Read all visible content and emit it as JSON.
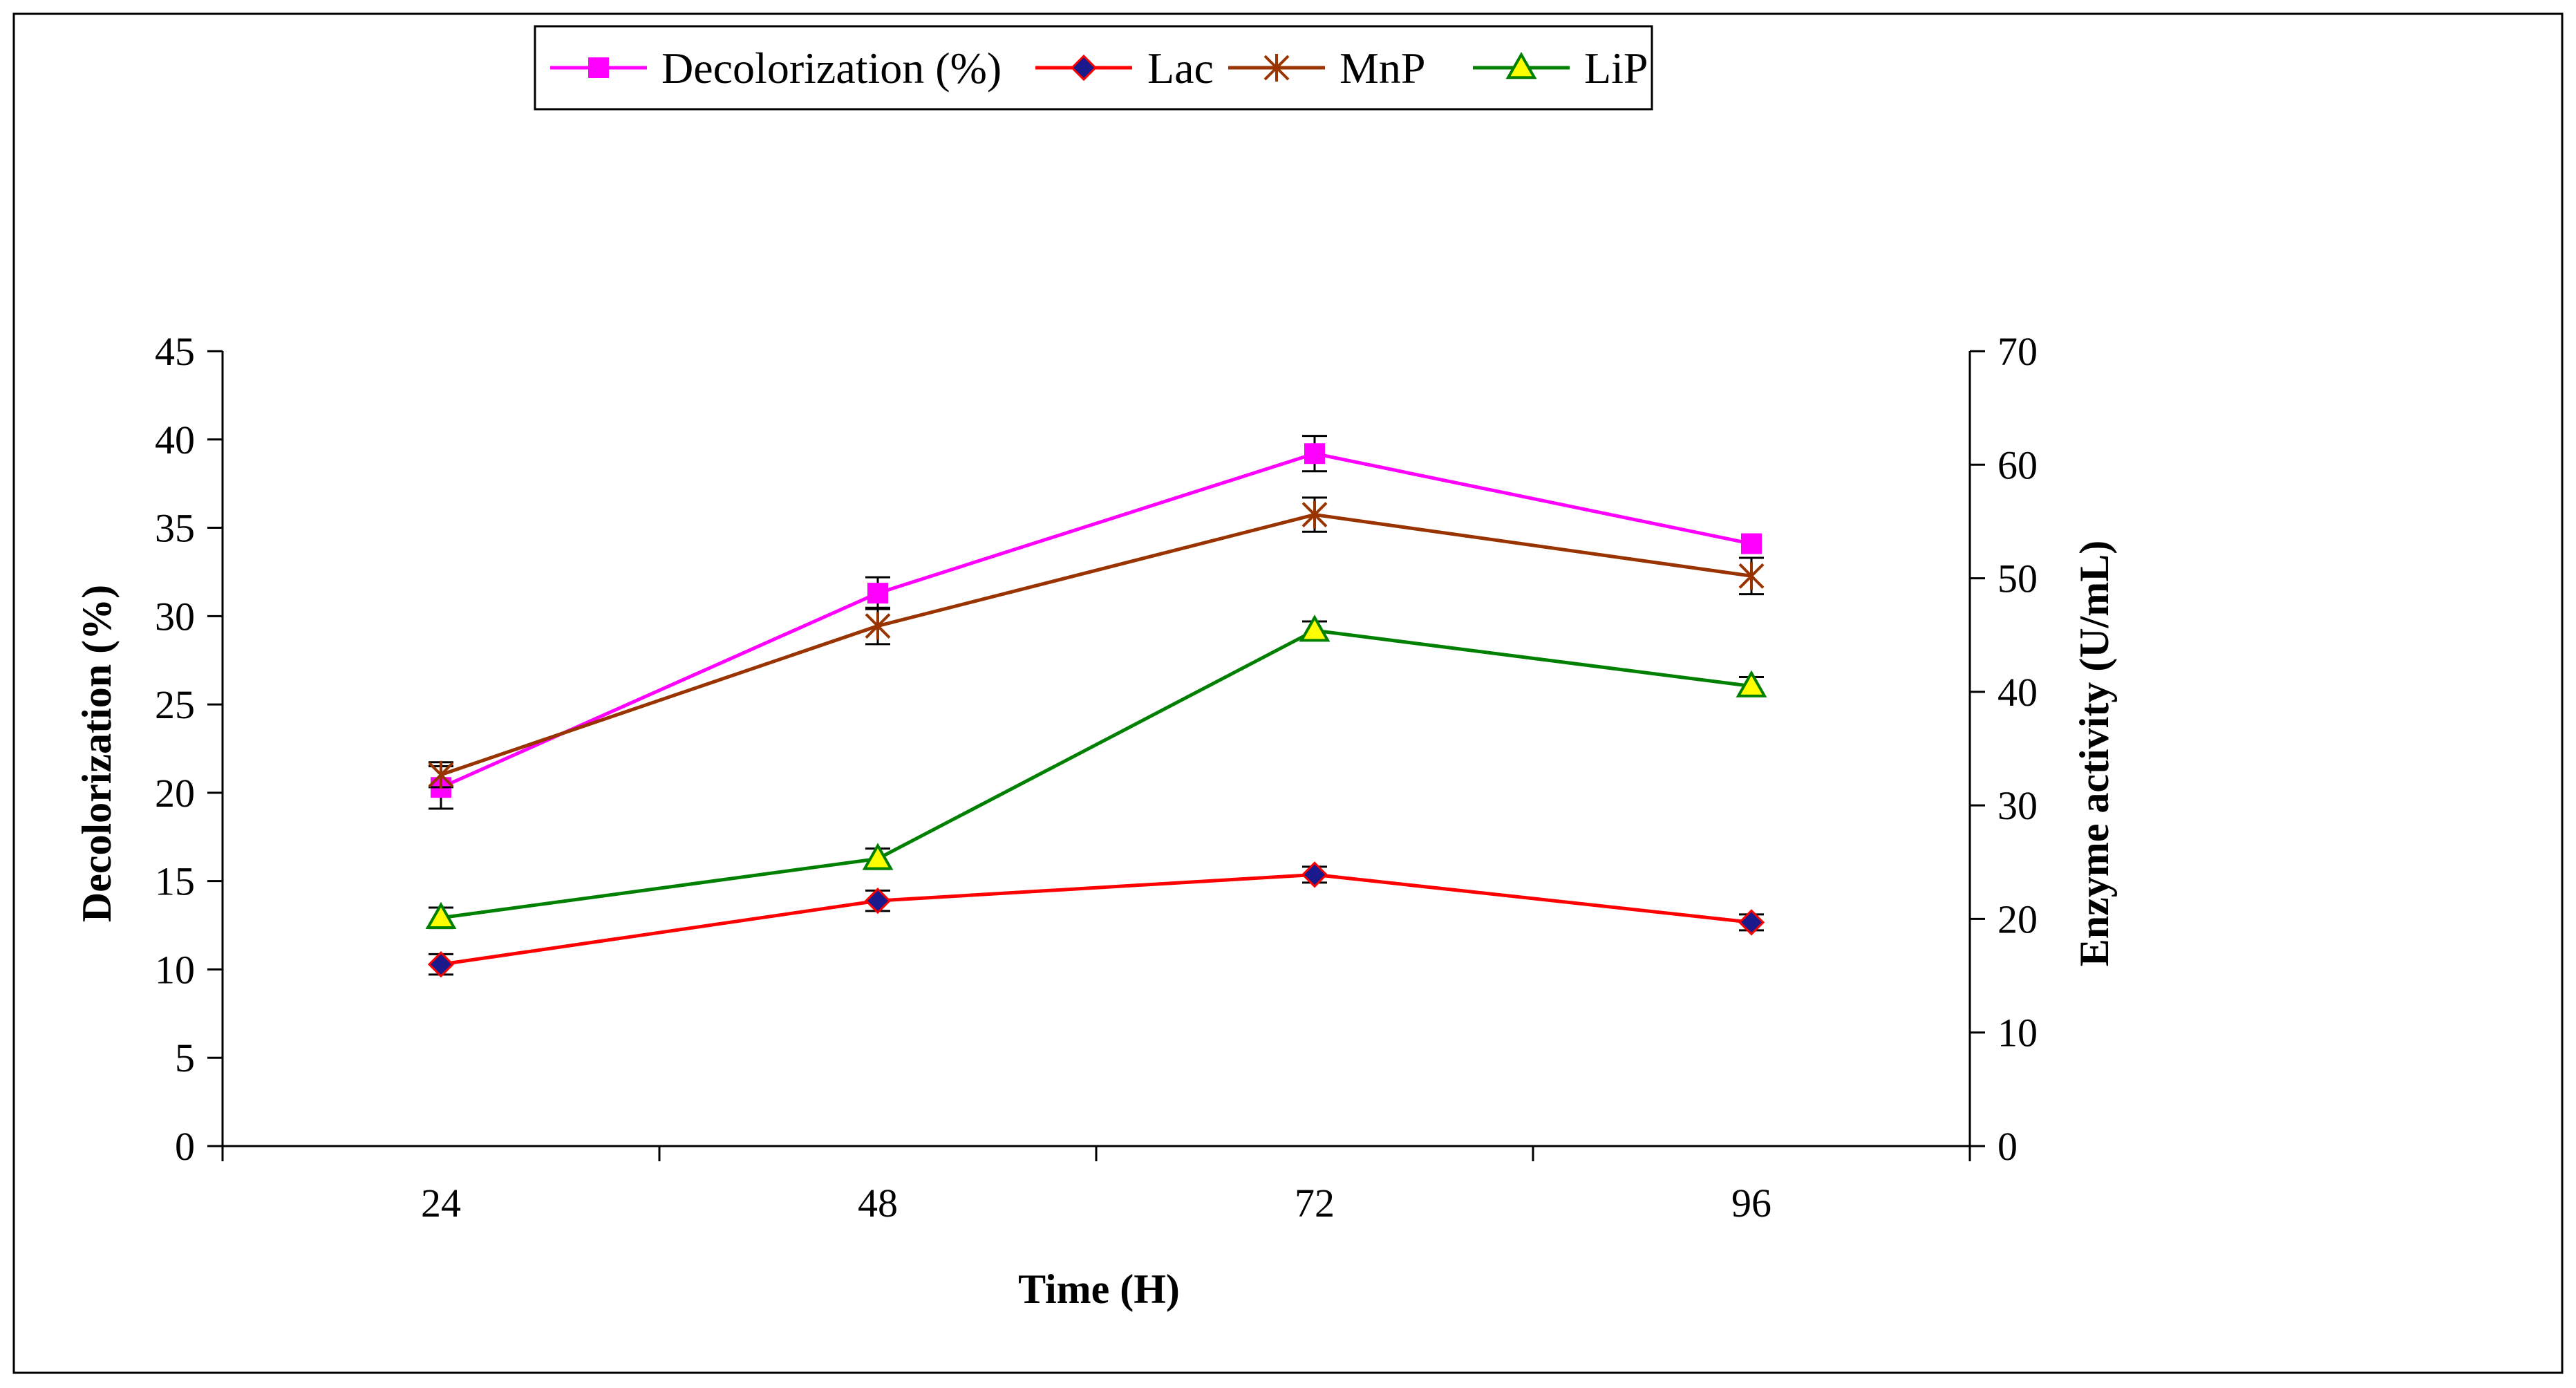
{
  "chart_data": {
    "type": "line",
    "title": "",
    "categories": [
      "24",
      "48",
      "72",
      "96"
    ],
    "x": [
      24,
      48,
      72,
      96
    ],
    "xlabel": "Time (H)",
    "ylabel": "Decolorization (%)",
    "y2label": "Enzyme activity (U/mL)",
    "ylim": [
      0,
      45
    ],
    "y2lim": [
      0,
      70
    ],
    "yticks": [
      "0",
      "5",
      "10",
      "15",
      "20",
      "25",
      "30",
      "35",
      "40",
      "45"
    ],
    "y2ticks": [
      "0",
      "10",
      "20",
      "30",
      "40",
      "50",
      "60",
      "70"
    ],
    "legend_position": "top-center",
    "grid": false,
    "series": [
      {
        "name": "Decolorization (%)",
        "axis": "left",
        "values": [
          20.3,
          31.3,
          39.2,
          34.1
        ],
        "errors": [
          1.2,
          0.9,
          1.0,
          0.0
        ],
        "color": "#ff00ff",
        "marker": "square"
      },
      {
        "name": "Lac",
        "axis": "right",
        "values": [
          16.0,
          21.6,
          23.9,
          19.7
        ],
        "errors": [
          0.9,
          0.9,
          0.7,
          0.7
        ],
        "color": "#ff0000",
        "marker": "diamond"
      },
      {
        "name": "MnP",
        "axis": "right",
        "values": [
          32.7,
          45.8,
          55.6,
          50.2
        ],
        "errors": [
          1.1,
          1.6,
          1.5,
          1.6
        ],
        "color": "#993300",
        "marker": "asterisk"
      },
      {
        "name": "LiP",
        "axis": "right",
        "values": [
          20.1,
          25.3,
          45.4,
          40.5
        ],
        "errors": [
          0.9,
          0.9,
          0.8,
          0.8
        ],
        "color": "#008000",
        "marker": "triangle"
      }
    ]
  }
}
